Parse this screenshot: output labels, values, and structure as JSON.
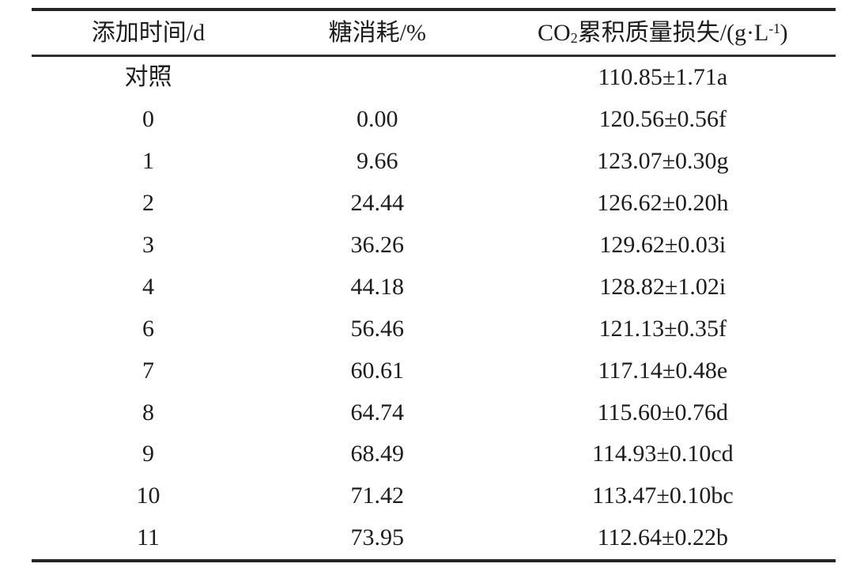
{
  "page": {
    "background": "#ffffff",
    "text_color": "#1c1c1c",
    "rule_color": "#262626"
  },
  "table": {
    "header": {
      "col1": "添加时间/d",
      "col2": "糖消耗/%",
      "col3": {
        "full_text": "CO₂累积质量损失/(g·L⁻¹)",
        "pre": "CO",
        "sub": "2",
        "mid": "累积质量损失/(g·L",
        "sup": "-1",
        "post": ")"
      }
    },
    "rows": [
      {
        "time": "对照",
        "sugar": "",
        "co2": "110.85±1.71a"
      },
      {
        "time": "0",
        "sugar": "0.00",
        "co2": "120.56±0.56f"
      },
      {
        "time": "1",
        "sugar": "9.66",
        "co2": "123.07±0.30g"
      },
      {
        "time": "2",
        "sugar": "24.44",
        "co2": "126.62±0.20h"
      },
      {
        "time": "3",
        "sugar": "36.26",
        "co2": "129.62±0.03i"
      },
      {
        "time": "4",
        "sugar": "44.18",
        "co2": "128.82±1.02i"
      },
      {
        "time": "6",
        "sugar": "56.46",
        "co2": "121.13±0.35f"
      },
      {
        "time": "7",
        "sugar": "60.61",
        "co2": "117.14±0.48e"
      },
      {
        "time": "8",
        "sugar": "64.74",
        "co2": "115.60±0.76d"
      },
      {
        "time": "9",
        "sugar": "68.49",
        "co2": "114.93±0.10cd"
      },
      {
        "time": "10",
        "sugar": "71.42",
        "co2": "113.47±0.10bc"
      },
      {
        "time": "11",
        "sugar": "73.95",
        "co2": "112.64±0.22b"
      }
    ]
  }
}
